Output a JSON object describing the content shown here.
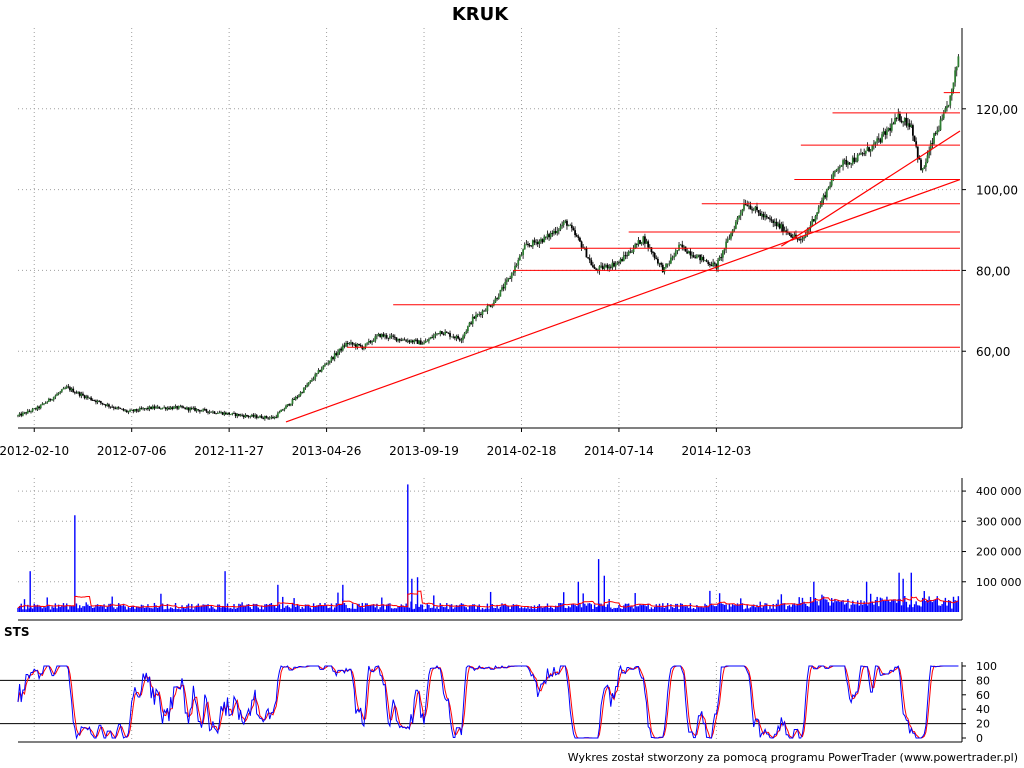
{
  "title": "KRUK",
  "footer": "Wykres został stworzony za pomocą programu PowerTrader (www.powertrader.pl)",
  "colors": {
    "candle": "#000000",
    "candle_up": "#2e7d32",
    "support": "#ff0000",
    "volume": "#0000ff",
    "volume_ma": "#ff0000",
    "sts_k": "#0000ff",
    "sts_d": "#ff0000",
    "grid": "#a0a0a0"
  },
  "chart_data": [
    {
      "type": "line",
      "name": "price",
      "x_ticks": [
        "2012-02-10",
        "2012-07-06",
        "2012-11-27",
        "2013-04-26",
        "2013-09-19",
        "2014-02-18",
        "2014-07-14",
        "2014-12-03"
      ],
      "y_ticks": [
        "60,00",
        "80,00",
        "100,00",
        "120,00"
      ],
      "ylim": [
        41,
        140
      ],
      "xlim_days": [
        0,
        1160
      ],
      "price_anchors": [
        {
          "d": 0,
          "v": 44
        },
        {
          "d": 25,
          "v": 46
        },
        {
          "d": 60,
          "v": 51
        },
        {
          "d": 80,
          "v": 49
        },
        {
          "d": 105,
          "v": 47
        },
        {
          "d": 135,
          "v": 45
        },
        {
          "d": 165,
          "v": 46
        },
        {
          "d": 200,
          "v": 46
        },
        {
          "d": 240,
          "v": 45
        },
        {
          "d": 280,
          "v": 44
        },
        {
          "d": 315,
          "v": 43.5
        },
        {
          "d": 345,
          "v": 49
        },
        {
          "d": 375,
          "v": 56
        },
        {
          "d": 405,
          "v": 62
        },
        {
          "d": 425,
          "v": 61
        },
        {
          "d": 445,
          "v": 64
        },
        {
          "d": 470,
          "v": 63
        },
        {
          "d": 500,
          "v": 62
        },
        {
          "d": 520,
          "v": 65
        },
        {
          "d": 545,
          "v": 63
        },
        {
          "d": 560,
          "v": 68
        },
        {
          "d": 585,
          "v": 72
        },
        {
          "d": 605,
          "v": 78
        },
        {
          "d": 625,
          "v": 86
        },
        {
          "d": 650,
          "v": 88
        },
        {
          "d": 675,
          "v": 92
        },
        {
          "d": 695,
          "v": 86
        },
        {
          "d": 710,
          "v": 80
        },
        {
          "d": 740,
          "v": 82
        },
        {
          "d": 770,
          "v": 88
        },
        {
          "d": 795,
          "v": 80
        },
        {
          "d": 815,
          "v": 86
        },
        {
          "d": 840,
          "v": 83
        },
        {
          "d": 860,
          "v": 81
        },
        {
          "d": 880,
          "v": 90
        },
        {
          "d": 895,
          "v": 97
        },
        {
          "d": 920,
          "v": 93
        },
        {
          "d": 945,
          "v": 90
        },
        {
          "d": 965,
          "v": 87
        },
        {
          "d": 985,
          "v": 95
        },
        {
          "d": 1010,
          "v": 106
        },
        {
          "d": 1035,
          "v": 108
        },
        {
          "d": 1060,
          "v": 112
        },
        {
          "d": 1085,
          "v": 118
        },
        {
          "d": 1100,
          "v": 116
        },
        {
          "d": 1113,
          "v": 104
        },
        {
          "d": 1128,
          "v": 113
        },
        {
          "d": 1140,
          "v": 118
        },
        {
          "d": 1150,
          "v": 124
        },
        {
          "d": 1158,
          "v": 133
        }
      ],
      "support_levels": [
        {
          "v": 61,
          "from_d": 405,
          "to_d": 1160
        },
        {
          "v": 71.5,
          "from_d": 462,
          "to_d": 1160
        },
        {
          "v": 80,
          "from_d": 610,
          "to_d": 1160
        },
        {
          "v": 85.5,
          "from_d": 655,
          "to_d": 1160
        },
        {
          "v": 89.5,
          "from_d": 752,
          "to_d": 1160
        },
        {
          "v": 96.5,
          "from_d": 842,
          "to_d": 1160
        },
        {
          "v": 102.5,
          "from_d": 956,
          "to_d": 1160
        },
        {
          "v": 111,
          "from_d": 964,
          "to_d": 1160
        },
        {
          "v": 119,
          "from_d": 1003,
          "to_d": 1160
        },
        {
          "v": 124,
          "from_d": 1140,
          "to_d": 1160
        }
      ],
      "trend_lines": [
        {
          "from": {
            "d": 330,
            "v": 42.5
          },
          "to": {
            "d": 1160,
            "v": 102.5
          }
        },
        {
          "from": {
            "d": 940,
            "v": 86
          },
          "to": {
            "d": 1160,
            "v": 114.5
          }
        }
      ]
    },
    {
      "type": "bar",
      "name": "volume",
      "y_ticks": [
        "100 000",
        "200 000",
        "300 000",
        "400 000"
      ],
      "ylim": [
        0,
        430000
      ],
      "spikes": [
        {
          "d": 15,
          "v": 135000
        },
        {
          "d": 70,
          "v": 320000
        },
        {
          "d": 255,
          "v": 135000
        },
        {
          "d": 320,
          "v": 90000
        },
        {
          "d": 400,
          "v": 90000
        },
        {
          "d": 480,
          "v": 422000
        },
        {
          "d": 485,
          "v": 110000
        },
        {
          "d": 492,
          "v": 115000
        },
        {
          "d": 690,
          "v": 100000
        },
        {
          "d": 715,
          "v": 175000
        },
        {
          "d": 722,
          "v": 120000
        },
        {
          "d": 980,
          "v": 100000
        },
        {
          "d": 1045,
          "v": 100000
        },
        {
          "d": 1085,
          "v": 130000
        },
        {
          "d": 1090,
          "v": 110000
        },
        {
          "d": 1100,
          "v": 130000
        }
      ]
    },
    {
      "type": "line",
      "name": "STS",
      "label": "STS",
      "y_ticks": [
        "0",
        "20",
        "40",
        "60",
        "80",
        "100"
      ],
      "ylim": [
        0,
        100
      ],
      "levels": [
        20,
        80
      ]
    }
  ]
}
